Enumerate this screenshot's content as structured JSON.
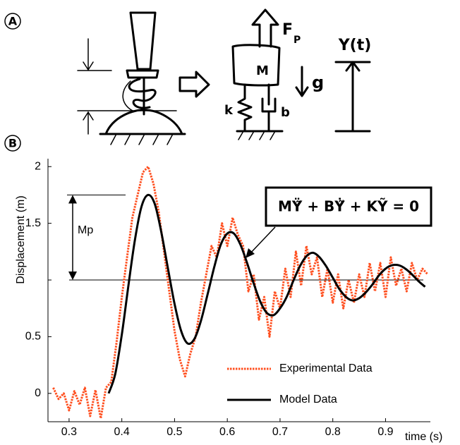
{
  "panel_labels": [
    "A",
    "B"
  ],
  "diagram": {
    "force": "F",
    "force_subscript": "P",
    "mass": "M",
    "gravity": "g",
    "spring": "k",
    "damper": "b",
    "output": "Y(t)"
  },
  "chart_data": {
    "type": "line",
    "x_label": "time (s)",
    "y_label": "Displacement (m)",
    "xlim": [
      0.26,
      0.985
    ],
    "ylim": [
      -0.25,
      2.07
    ],
    "xticks": [
      0.3,
      0.4,
      0.5,
      0.6,
      0.7,
      0.8,
      0.9
    ],
    "yticks": [
      0,
      0.5,
      {
        "value": 1,
        "label": null
      },
      1.5,
      2
    ],
    "grid": false,
    "legend": "lower right",
    "annotations": {
      "overshoot": "Mp",
      "equation": "MŸ̃ + BẎ̃ + KỸ = 0"
    },
    "series": [
      {
        "name": "Experimental Data",
        "color": "#ff4f1f",
        "style": "dotted",
        "x": [
          0.27,
          0.28,
          0.29,
          0.3,
          0.31,
          0.32,
          0.33,
          0.34,
          0.35,
          0.36,
          0.37,
          0.38,
          0.39,
          0.4,
          0.41,
          0.42,
          0.43,
          0.44,
          0.45,
          0.46,
          0.47,
          0.48,
          0.49,
          0.5,
          0.51,
          0.52,
          0.53,
          0.54,
          0.55,
          0.56,
          0.57,
          0.58,
          0.59,
          0.6,
          0.61,
          0.62,
          0.63,
          0.64,
          0.65,
          0.66,
          0.67,
          0.68,
          0.69,
          0.7,
          0.71,
          0.72,
          0.73,
          0.74,
          0.75,
          0.76,
          0.77,
          0.78,
          0.79,
          0.8,
          0.81,
          0.82,
          0.83,
          0.84,
          0.85,
          0.86,
          0.87,
          0.88,
          0.89,
          0.9,
          0.91,
          0.92,
          0.93,
          0.94,
          0.95,
          0.96,
          0.97,
          0.98
        ],
        "values": [
          0.05,
          -0.05,
          0.0,
          -0.15,
          0.02,
          -0.1,
          0.05,
          -0.2,
          0.03,
          -0.22,
          0.05,
          0.1,
          0.45,
          0.85,
          1.2,
          1.55,
          1.75,
          1.95,
          2.0,
          1.85,
          1.6,
          1.25,
          0.9,
          0.55,
          0.3,
          0.15,
          0.35,
          0.5,
          0.8,
          1.05,
          1.3,
          1.2,
          1.5,
          1.3,
          1.55,
          1.4,
          1.3,
          0.9,
          1.05,
          0.65,
          0.85,
          0.5,
          0.9,
          0.75,
          1.1,
          0.85,
          1.25,
          0.95,
          1.3,
          1.05,
          1.2,
          0.85,
          1.1,
          0.8,
          1.05,
          0.75,
          1.0,
          0.8,
          1.05,
          0.85,
          1.15,
          0.9,
          1.15,
          0.85,
          1.2,
          0.95,
          1.1,
          0.9,
          1.15,
          1.0,
          1.1,
          1.05
        ]
      },
      {
        "name": "Model Data",
        "color": "#000000",
        "style": "solid",
        "x": [
          0.375,
          0.3875,
          0.4,
          0.4125,
          0.425,
          0.4375,
          0.45,
          0.4625,
          0.475,
          0.4875,
          0.5,
          0.5125,
          0.525,
          0.5375,
          0.55,
          0.5625,
          0.575,
          0.5875,
          0.6,
          0.6125,
          0.625,
          0.6375,
          0.65,
          0.6625,
          0.675,
          0.6875,
          0.7,
          0.7125,
          0.725,
          0.7375,
          0.75,
          0.7625,
          0.775,
          0.7875,
          0.8,
          0.8125,
          0.825,
          0.8375,
          0.85,
          0.8625,
          0.875,
          0.8875,
          0.9,
          0.9125,
          0.925,
          0.9375,
          0.95,
          0.9625,
          0.975
        ],
        "values": [
          0,
          0.17,
          0.52,
          0.95,
          1.36,
          1.65,
          1.75,
          1.67,
          1.42,
          1.1,
          0.79,
          0.55,
          0.44,
          0.48,
          0.64,
          0.87,
          1.11,
          1.31,
          1.41,
          1.41,
          1.31,
          1.15,
          0.97,
          0.81,
          0.71,
          0.69,
          0.75,
          0.85,
          0.99,
          1.12,
          1.21,
          1.24,
          1.2,
          1.12,
          1.02,
          0.92,
          0.85,
          0.82,
          0.84,
          0.89,
          0.96,
          1.04,
          1.1,
          1.13,
          1.13,
          1.1,
          1.05,
          0.99,
          0.94
        ]
      }
    ]
  }
}
